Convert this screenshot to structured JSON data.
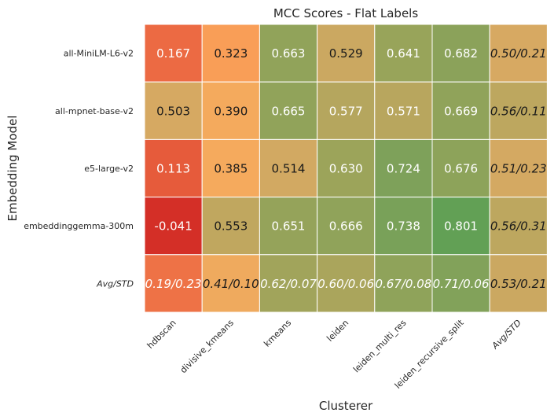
{
  "chart_data": {
    "type": "heatmap",
    "title": "MCC Scores - Flat Labels",
    "xlabel": "Clusterer",
    "ylabel": "Embedding Model",
    "columns": [
      "hdbscan",
      "divisive_kmeans",
      "kmeans",
      "leiden",
      "leiden_multi_res",
      "leiden_recursive_split",
      "Avg/STD"
    ],
    "rows": [
      "all-MiniLM-L6-v2",
      "all-mpnet-base-v2",
      "e5-large-v2",
      "embeddinggemma-300m",
      "Avg/STD"
    ],
    "italic_columns": [
      "Avg/STD"
    ],
    "italic_rows": [
      "Avg/STD"
    ],
    "cells": [
      [
        {
          "label": "0.167",
          "value": 0.167
        },
        {
          "label": "0.323",
          "value": 0.323
        },
        {
          "label": "0.663",
          "value": 0.663
        },
        {
          "label": "0.529",
          "value": 0.529
        },
        {
          "label": "0.641",
          "value": 0.641
        },
        {
          "label": "0.682",
          "value": 0.682
        },
        {
          "label": "0.50/0.21",
          "value": 0.5
        }
      ],
      [
        {
          "label": "0.503",
          "value": 0.503
        },
        {
          "label": "0.390",
          "value": 0.39
        },
        {
          "label": "0.665",
          "value": 0.665
        },
        {
          "label": "0.577",
          "value": 0.577
        },
        {
          "label": "0.571",
          "value": 0.571
        },
        {
          "label": "0.669",
          "value": 0.669
        },
        {
          "label": "0.56/0.11",
          "value": 0.56
        }
      ],
      [
        {
          "label": "0.113",
          "value": 0.113
        },
        {
          "label": "0.385",
          "value": 0.385
        },
        {
          "label": "0.514",
          "value": 0.514
        },
        {
          "label": "0.630",
          "value": 0.63
        },
        {
          "label": "0.724",
          "value": 0.724
        },
        {
          "label": "0.676",
          "value": 0.676
        },
        {
          "label": "0.51/0.23",
          "value": 0.51
        }
      ],
      [
        {
          "label": "-0.041",
          "value": -0.041
        },
        {
          "label": "0.553",
          "value": 0.553
        },
        {
          "label": "0.651",
          "value": 0.651
        },
        {
          "label": "0.666",
          "value": 0.666
        },
        {
          "label": "0.738",
          "value": 0.738
        },
        {
          "label": "0.801",
          "value": 0.801
        },
        {
          "label": "0.56/0.31",
          "value": 0.56
        }
      ],
      [
        {
          "label": "0.19/0.23",
          "value": 0.19
        },
        {
          "label": "0.41/0.10",
          "value": 0.41
        },
        {
          "label": "0.62/0.07",
          "value": 0.62
        },
        {
          "label": "0.60/0.06",
          "value": 0.6
        },
        {
          "label": "0.67/0.08",
          "value": 0.67
        },
        {
          "label": "0.71/0.06",
          "value": 0.71
        },
        {
          "label": "0.53/0.21",
          "value": 0.53
        }
      ]
    ],
    "color_scale": {
      "stops": [
        {
          "value": -0.041,
          "color": "#d42f27"
        },
        {
          "value": 0.17,
          "color": "#ec6b43"
        },
        {
          "value": 0.36,
          "color": "#fcaa5c"
        },
        {
          "value": 0.51,
          "color": "#d4a962"
        },
        {
          "value": 0.63,
          "color": "#9ca45a"
        },
        {
          "value": 0.73,
          "color": "#7ca15a"
        },
        {
          "value": 0.8,
          "color": "#62a055"
        }
      ],
      "dark_text_range": [
        0.28,
        0.56
      ],
      "light_text_color": "#ffffff",
      "dark_text_color": "#1a1a1a"
    },
    "grid_line_color": "#ffffff"
  }
}
